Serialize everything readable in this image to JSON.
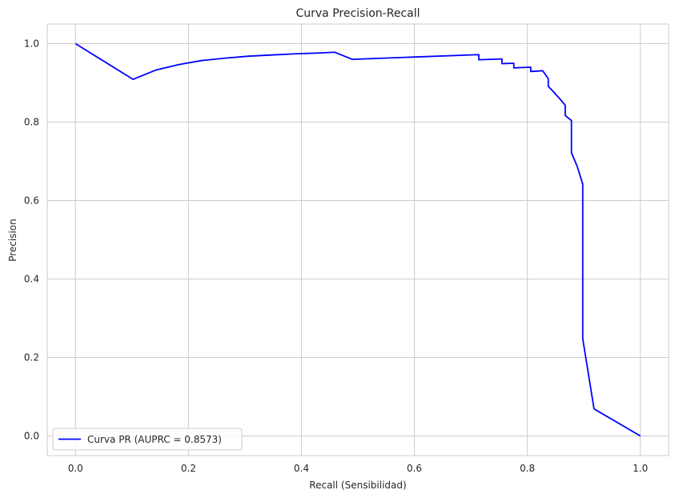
{
  "chart_data": {
    "type": "line",
    "title": "Curva Precision-Recall",
    "xlabel": "Recall (Sensibilidad)",
    "ylabel": "Precision",
    "xlim": [
      -0.05,
      1.05
    ],
    "ylim": [
      -0.05,
      1.05
    ],
    "x_ticks": [
      0.0,
      0.2,
      0.4,
      0.6,
      0.8,
      1.0
    ],
    "y_ticks": [
      0.0,
      0.2,
      0.4,
      0.6,
      0.8,
      1.0
    ],
    "grid": true,
    "legend_position": "lower-left",
    "series": [
      {
        "name": "Curva PR (AUPRC = 0.8573)",
        "color": "#0000ff",
        "x": [
          0.0,
          0.102,
          0.143,
          0.184,
          0.224,
          0.265,
          0.306,
          0.347,
          0.388,
          0.429,
          0.459,
          0.49,
          0.714,
          0.714,
          0.755,
          0.755,
          0.776,
          0.776,
          0.806,
          0.806,
          0.827,
          0.837,
          0.837,
          0.847,
          0.857,
          0.867,
          0.867,
          0.878,
          0.878,
          0.888,
          0.898,
          0.898,
          0.918,
          1.0
        ],
        "y": [
          1.0,
          0.909,
          0.933,
          0.947,
          0.957,
          0.963,
          0.968,
          0.971,
          0.974,
          0.976,
          0.978,
          0.96,
          0.972,
          0.959,
          0.961,
          0.949,
          0.95,
          0.938,
          0.94,
          0.929,
          0.931,
          0.911,
          0.891,
          0.876,
          0.86,
          0.843,
          0.817,
          0.804,
          0.722,
          0.688,
          0.642,
          0.248,
          0.069,
          0.0
        ]
      }
    ]
  }
}
